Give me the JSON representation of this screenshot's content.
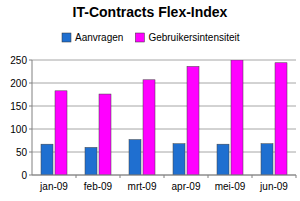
{
  "chart_data": {
    "type": "bar",
    "title": "IT-Contracts Flex-Index",
    "categories": [
      "jan-09",
      "feb-09",
      "mrt-09",
      "apr-09",
      "mei-09",
      "jun-09"
    ],
    "series": [
      {
        "name": "Aanvragen",
        "color": "#1f6fd0",
        "values": [
          67,
          60,
          77,
          68,
          67,
          68
        ]
      },
      {
        "name": "Gebruikersintensiteit",
        "color": "#ff00ff",
        "values": [
          183,
          176,
          207,
          236,
          250,
          244
        ]
      }
    ],
    "ylim": [
      0,
      250
    ],
    "yticks": [
      0,
      50,
      100,
      150,
      200,
      250
    ],
    "grid": true,
    "legend": "top"
  }
}
